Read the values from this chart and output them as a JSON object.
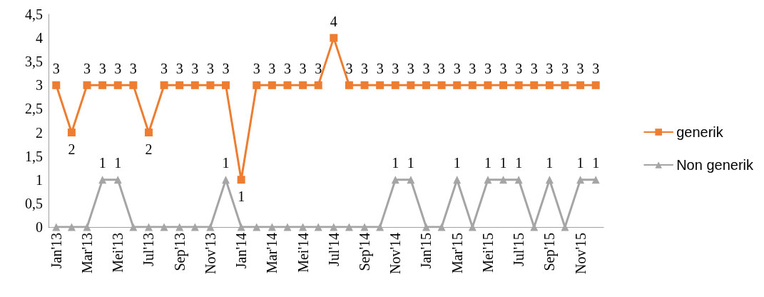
{
  "chart_data": {
    "type": "line",
    "categories": [
      "Jan'13",
      null,
      "Mar'13",
      null,
      "Mei'13",
      null,
      "Jul'13",
      null,
      "Sep'13",
      null,
      "Nov'13",
      null,
      "Jan'14",
      null,
      "Mar'14",
      null,
      "Mei'14",
      null,
      "Jul'14",
      null,
      "Sep'14",
      null,
      "Nov'14",
      null,
      "Jan'15",
      null,
      "Mar'15",
      null,
      "Mei'15",
      null,
      "Jul'15",
      null,
      "Sep'15",
      null,
      "Nov'15",
      null
    ],
    "series": [
      {
        "name": "generik",
        "color": "#ed7d31",
        "marker": "square",
        "values": [
          3,
          2,
          3,
          3,
          3,
          3,
          2,
          3,
          3,
          3,
          3,
          3,
          1,
          3,
          3,
          3,
          3,
          3,
          4,
          3,
          3,
          3,
          3,
          3,
          3,
          3,
          3,
          3,
          3,
          3,
          3,
          3,
          3,
          3,
          3,
          3
        ],
        "value_labels": [
          "3",
          "2",
          "3",
          "3",
          "3",
          "3",
          "2",
          "3",
          "3",
          "3",
          "3",
          "3",
          "1",
          "3",
          "3",
          "3",
          "3",
          "3",
          "4",
          "3",
          "3",
          "3",
          "3",
          "3",
          "3",
          "3",
          "3",
          "3",
          "3",
          "3",
          "3",
          "3",
          "3",
          "3",
          "3",
          "3"
        ]
      },
      {
        "name": "Non generik",
        "color": "#a5a5a5",
        "marker": "triangle",
        "values": [
          0,
          0,
          0,
          1,
          1,
          0,
          0,
          0,
          0,
          0,
          0,
          1,
          0,
          0,
          0,
          0,
          0,
          0,
          0,
          0,
          0,
          0,
          1,
          1,
          0,
          0,
          1,
          0,
          1,
          1,
          1,
          0,
          1,
          0,
          1,
          1
        ],
        "value_labels": [
          null,
          null,
          null,
          "1",
          "1",
          null,
          null,
          null,
          null,
          null,
          null,
          "1",
          null,
          null,
          null,
          null,
          null,
          null,
          null,
          null,
          null,
          null,
          "1",
          "1",
          null,
          null,
          "1",
          null,
          "1",
          "1",
          "1",
          null,
          "1",
          null,
          "1",
          "1"
        ]
      }
    ],
    "ylim": [
      0,
      4.5
    ],
    "yticks": [
      0,
      {
        "value": 0.5,
        "label": "0,5"
      },
      1,
      {
        "value": 1.5,
        "label": "1,5"
      },
      2,
      {
        "value": 2.5,
        "label": "2,5"
      },
      3,
      {
        "value": 3.5,
        "label": "3,5"
      },
      4,
      {
        "value": 4.5,
        "label": "4,5"
      }
    ],
    "grid": false,
    "legend": "right",
    "line_style": "solid"
  }
}
